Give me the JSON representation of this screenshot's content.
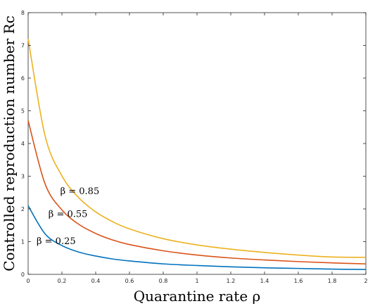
{
  "chart_data": {
    "type": "line",
    "xlabel": "Quarantine rate ρ",
    "ylabel": "Controlled reproduction number Rc",
    "xlim": [
      0,
      2
    ],
    "ylim": [
      0,
      8
    ],
    "xticks": [
      0,
      0.2,
      0.4,
      0.6,
      0.8,
      1,
      1.2,
      1.4,
      1.6,
      1.8,
      2
    ],
    "xtick_labels": [
      "0",
      "0.2",
      "0.4",
      "0.6",
      "0.8",
      "1",
      "1.2",
      "1.4",
      "1.6",
      "1.8",
      "2"
    ],
    "yticks": [
      0,
      1,
      2,
      3,
      4,
      5,
      6,
      7,
      8
    ],
    "ytick_labels": [
      "0",
      "1",
      "2",
      "3",
      "4",
      "5",
      "6",
      "7",
      "8"
    ],
    "grid": false,
    "x": [
      0,
      0.1,
      0.2,
      0.3,
      0.4,
      0.5,
      0.6,
      0.8,
      1.0,
      1.2,
      1.4,
      1.6,
      1.8,
      2.0
    ],
    "series": [
      {
        "annotation": "β = 0.25",
        "color": "#0072BD",
        "values": [
          2.1,
          1.24,
          0.88,
          0.68,
          0.56,
          0.47,
          0.41,
          0.32,
          0.27,
          0.23,
          0.2,
          0.18,
          0.16,
          0.15
        ]
      },
      {
        "annotation": "β = 0.55",
        "color": "#D95319",
        "values": [
          4.7,
          2.77,
          1.97,
          1.53,
          1.25,
          1.05,
          0.91,
          0.72,
          0.59,
          0.5,
          0.44,
          0.39,
          0.35,
          0.32
        ]
      },
      {
        "annotation": "β = 0.85",
        "color": "#EDB120",
        "values": [
          7.2,
          4.24,
          3.01,
          2.34,
          1.91,
          1.61,
          1.39,
          1.09,
          0.9,
          0.77,
          0.67,
          0.59,
          0.53,
          0.52
        ]
      }
    ],
    "annotations": [
      {
        "text": "β = 0.85",
        "x": 0.19,
        "y": 2.45
      },
      {
        "text": "β = 0.55",
        "x": 0.12,
        "y": 1.75
      },
      {
        "text": "β = 0.25",
        "x": 0.05,
        "y": 0.92
      }
    ]
  }
}
